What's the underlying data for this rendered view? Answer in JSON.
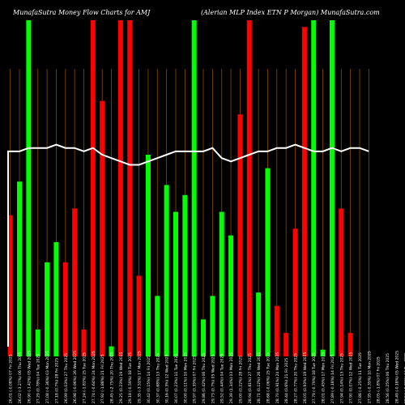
{
  "header": {
    "left_text": "MunafaSutra  Money Flow  Charts for AMJ",
    "right_text": "(Alerian  MLP Index ETN    P Morgan) MunafaSutra.com"
  },
  "colors": {
    "background": "#000000",
    "up": "#00ff00",
    "down": "#ff0000",
    "grid": "#8a4a00",
    "line": "#ffffff",
    "label": "#ffffff"
  },
  "chart_data": {
    "type": "bar",
    "title": "",
    "grid": true,
    "ylim": [
      0,
      100
    ],
    "categories": [
      "26.01 (-0.08%) 07 Fri 2025",
      "26.02 (-3.27%) 06 Thu 2025",
      "26.90 (-1.42%) 05 Wed 2025",
      "27.29 (0.78%) 04 Tue 2025",
      "27.08 (-0.36%) 03 Mon 2025",
      "27.18 (0.7%) 28 Fri 2025",
      "26.99 (0.03%) 27 Thu 2025",
      "26.98 (-0.96%) 26 Wed 2025",
      "27.24 (-1.81%) 25 Tue 2025",
      "27.74 (-0.64%) 24 Mon 2025",
      "27.92 (-1.88%) 21 Fri 2025",
      "28.45 (-2.75%) 20 Thu 2025",
      "29.25 (0.23%) 19 Wed 2025",
      "29.18 (-0.59%) 18 Tue 2025",
      "29.35 (-3.51%) 17 Mon 2025",
      "30.42 (0.15%) 14 Fri 2025",
      "30.37 (0.68%) 13 Thu 2025",
      "30.16 (0.3%) 12 Wed 2025",
      "30.07 (0.23%) 11 Tue 2025",
      "30.00 (0.11%) 10 Mon 2025",
      "29.97 (0.35%) 07 Fri 2025",
      "29.86 (0.42%) 06 Thu 2025",
      "29.73 (0.7%) 05 Wed 2025",
      "29.52 (0.44%) 04 Tue 2025",
      "29.39 (1.34%) 03 Mon 2025",
      "29.00 (0.22%) 28 Fri 2025",
      "28.94 (0.81%) 27 Thu 2025",
      "28.71 (0.12%) 26 Wed 2025",
      "28.68 (-0.06%) 25 Tue 2025",
      "28.70 (0.91%) 24 Mon 2025",
      "28.44 (0.6%) 21 Fri 2025",
      "28.27 (0.77%) 20 Thu 2025",
      "28.05 (0.93%) 19 Wed 2025",
      "27.79 (-0.79%) 18 Tue 2025",
      "28.01 (0.45%) 17 Mon 2025",
      "27.89 (-0.18%) 14 Fri 2025",
      "27.94 (0.14%) 13 Thu 2025",
      "27.90 (0.07%) 12 Wed 2025",
      "27.88 (-0.25%) 11 Tue 2025",
      "27.95 (-0.35%) 10 Mon 2025",
      "28.05 (-1.8%) 07 Fri 2025",
      "28.56 (0.25%) 06 Thu 2025",
      "28.49 (-0.18%) 05 Wed 2025",
      "28.54 (-0.21%) 04 Tue 2025",
      "28.60 (0.07%) 03 Mon 2025"
    ],
    "bar_values": [
      42,
      52,
      100,
      8,
      28,
      34,
      28,
      44,
      8,
      100,
      76,
      3,
      100,
      100,
      24,
      60,
      18,
      51,
      43,
      48,
      100,
      11,
      18,
      43,
      36,
      72,
      100,
      19,
      56,
      15,
      7,
      38,
      98,
      100,
      2,
      100,
      44,
      7,
      0,
      0,
      0,
      0,
      0,
      0,
      0
    ],
    "bar_directions": [
      "down",
      "up",
      "up",
      "up",
      "up",
      "up",
      "down",
      "down",
      "down",
      "down",
      "down",
      "up",
      "down",
      "down",
      "down",
      "up",
      "up",
      "up",
      "up",
      "up",
      "up",
      "up",
      "up",
      "up",
      "up",
      "down",
      "down",
      "up",
      "up",
      "down",
      "down",
      "down",
      "down",
      "up",
      "up",
      "up",
      "down",
      "down",
      "up",
      "up",
      "up",
      "up",
      "up",
      "up",
      "up"
    ],
    "line_series": {
      "values": [
        61,
        61,
        62,
        62,
        62,
        63,
        62,
        62,
        61,
        62,
        60,
        59,
        58,
        57,
        57,
        58,
        59,
        60,
        61,
        61,
        61,
        61,
        62,
        59,
        58,
        59,
        60,
        61,
        61,
        62,
        62,
        63,
        62,
        61,
        61,
        62,
        61,
        62,
        62,
        61
      ]
    }
  }
}
